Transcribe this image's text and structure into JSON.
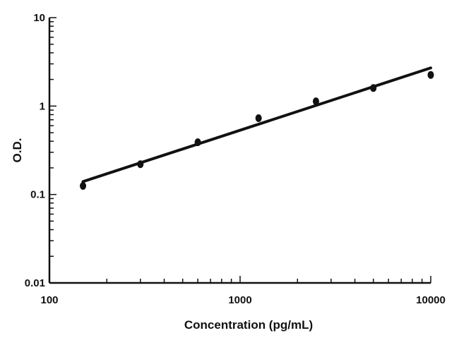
{
  "chart_data": {
    "type": "scatter",
    "xlabel": "Concentration (pg/mL)",
    "ylabel": "O.D.",
    "xscale": "log",
    "yscale": "log",
    "xlim": [
      100,
      10000
    ],
    "ylim": [
      0.01,
      10
    ],
    "x_ticks": [
      100,
      1000,
      10000
    ],
    "x_tick_labels": [
      "100",
      "1000",
      "10000"
    ],
    "y_ticks": [
      0.01,
      0.1,
      1,
      10
    ],
    "y_tick_labels": [
      "0.01",
      "0.1",
      "1",
      "10"
    ],
    "grid": false,
    "points": {
      "x": [
        150,
        300,
        600,
        1250,
        2500,
        5000,
        10000
      ],
      "y": [
        0.125,
        0.22,
        0.39,
        0.73,
        1.13,
        1.6,
        2.25
      ]
    },
    "fit_line": {
      "x": [
        150,
        10000
      ],
      "y": [
        0.14,
        2.7
      ]
    },
    "colors": {
      "ink": "#111111",
      "background": "#ffffff"
    }
  }
}
